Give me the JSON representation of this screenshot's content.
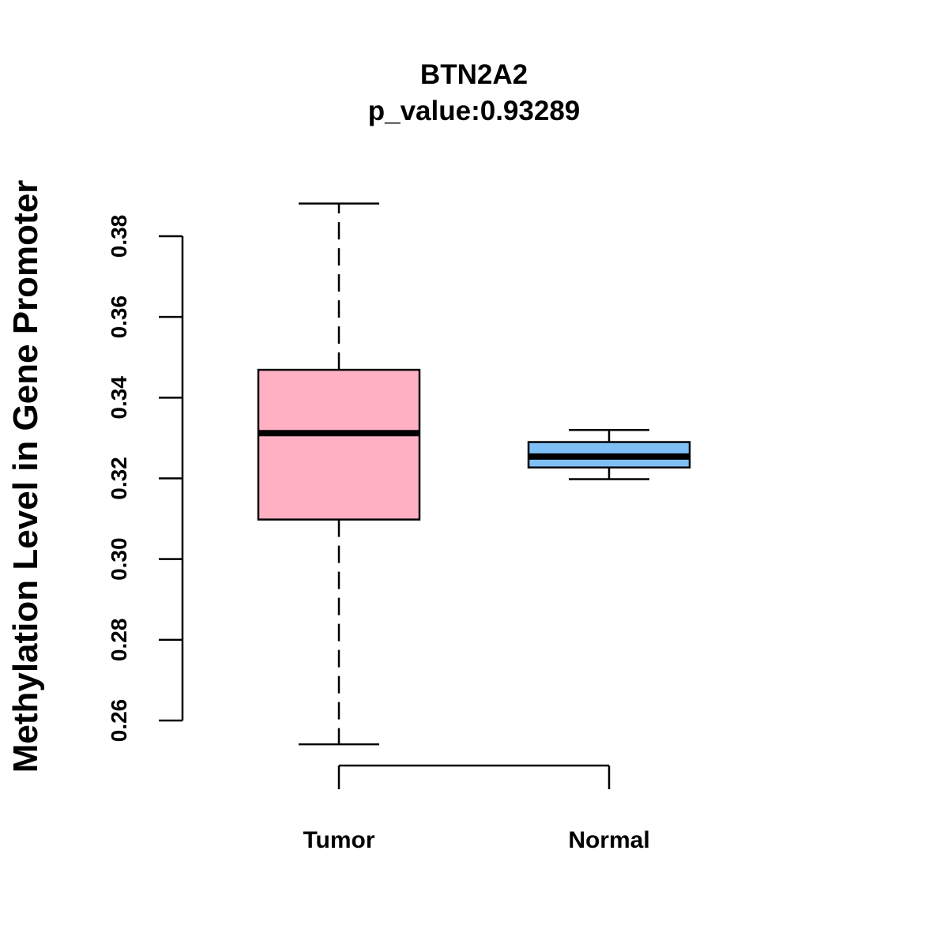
{
  "chart_data": {
    "type": "boxplot",
    "title": "BTN2A2",
    "subtitle": "p_value:0.93289",
    "xlabel": "",
    "ylabel": "Methylation Level in Gene Promoter",
    "ylim": [
      0.26,
      0.38
    ],
    "yticks": [
      0.26,
      0.28,
      0.3,
      0.32,
      0.34,
      0.36,
      0.38
    ],
    "ytick_labels": [
      "0.26",
      "0.28",
      "0.30",
      "0.32",
      "0.34",
      "0.36",
      "0.38"
    ],
    "categories": [
      "Tumor",
      "Normal"
    ],
    "boxes": [
      {
        "whisker_low": 0.2541,
        "q1": 0.3098,
        "median": 0.3312,
        "q3": 0.3469,
        "whisker_high": 0.3881,
        "color": "#FFB1C3"
      },
      {
        "whisker_low": 0.3198,
        "q1": 0.3227,
        "median": 0.3254,
        "q3": 0.329,
        "whisker_high": 0.332,
        "color": "#7EC0F6"
      }
    ],
    "grid": false,
    "legend": "none"
  }
}
